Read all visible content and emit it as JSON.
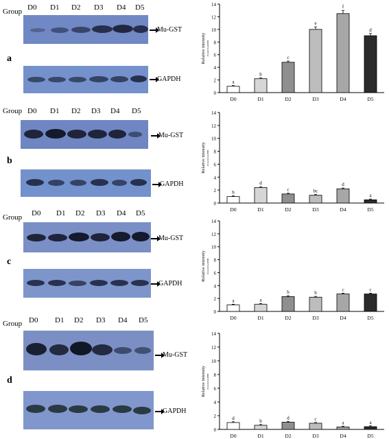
{
  "panels": [
    {
      "letter": "a",
      "group_label": "Group",
      "lanes": [
        "D0",
        "D1",
        "D2",
        "D3",
        "D4",
        "D5"
      ],
      "target_label": "Mu-GST",
      "control_label": "GAPDH",
      "blot_color": "#6f86c2"
    },
    {
      "letter": "b",
      "group_label": "Group",
      "lanes": [
        "D0",
        "D1",
        "D2",
        "D3",
        "D4",
        "D5"
      ],
      "target_label": "Mu-GST",
      "control_label": "GAPDH",
      "blot_color": "#6f86c2"
    },
    {
      "letter": "c",
      "group_label": "Group",
      "lanes": [
        "D0",
        "D1",
        "D2",
        "D3",
        "D4",
        "D5"
      ],
      "target_label": "Mu-GST",
      "control_label": "GAPDH",
      "blot_color": "#7a8fc6"
    },
    {
      "letter": "d",
      "group_label": "Group",
      "lanes": [
        "D0",
        "D1",
        "D2",
        "D3",
        "D4",
        "D5"
      ],
      "target_label": "Mu-GST",
      "control_label": "GAPDH",
      "blot_color": "#7c8fc4"
    }
  ],
  "bar_colors": [
    "#ffffff",
    "#d6d6d6",
    "#8f8f8f",
    "#bdbdbd",
    "#a7a7a7",
    "#2b2b2b"
  ],
  "chart_data": [
    {
      "type": "bar",
      "categories": [
        "D0",
        "D1",
        "D2",
        "D3",
        "D4",
        "D5"
      ],
      "values": [
        1.0,
        2.2,
        4.8,
        10.0,
        12.5,
        9.0
      ],
      "letters": [
        "a",
        "b",
        "c",
        "e",
        "f",
        "d"
      ],
      "ylabel": "Relative intensity",
      "ylabel_sub": "Protein/GAPDH",
      "ylim": [
        0,
        14
      ],
      "yticks": [
        0,
        2,
        4,
        6,
        8,
        10,
        12,
        14
      ]
    },
    {
      "type": "bar",
      "categories": [
        "D0",
        "D1",
        "D2",
        "D3",
        "D4",
        "D5"
      ],
      "values": [
        1.0,
        2.4,
        1.4,
        1.2,
        2.2,
        0.5
      ],
      "letters": [
        "b",
        "d",
        "c",
        "bc",
        "d",
        "a"
      ],
      "ylabel": "Relative intensity",
      "ylabel_sub": "Protein/GAPDH",
      "ylim": [
        0,
        14
      ],
      "yticks": [
        0,
        2,
        4,
        6,
        8,
        10,
        12,
        14
      ]
    },
    {
      "type": "bar",
      "categories": [
        "D0",
        "D1",
        "D2",
        "D3",
        "D4",
        "D5"
      ],
      "values": [
        1.0,
        1.1,
        2.3,
        2.2,
        2.7,
        2.7
      ],
      "letters": [
        "a",
        "a",
        "b",
        "b",
        "c",
        "c"
      ],
      "ylabel": "Relative intensity",
      "ylabel_sub": "Protein/GAPDH",
      "ylim": [
        0,
        14
      ],
      "yticks": [
        0,
        2,
        4,
        6,
        8,
        10,
        12,
        14
      ]
    },
    {
      "type": "bar",
      "categories": [
        "D0",
        "D1",
        "D2",
        "D3",
        "D4",
        "D5"
      ],
      "values": [
        1.0,
        0.6,
        1.05,
        0.9,
        0.35,
        0.4
      ],
      "letters": [
        "d",
        "b",
        "d",
        "c",
        "a",
        "a"
      ],
      "ylabel": "Relative intensity",
      "ylabel_sub": "Protein/GAPDH",
      "ylim": [
        0,
        14
      ],
      "yticks": [
        0,
        2,
        4,
        6,
        8,
        10,
        12,
        14
      ]
    }
  ]
}
